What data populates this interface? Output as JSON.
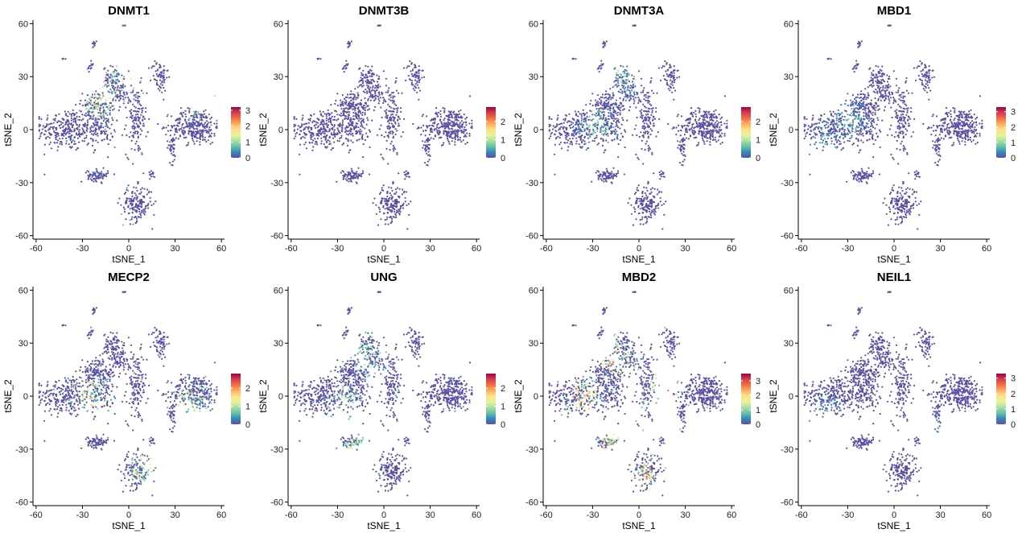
{
  "chart_data": [
    {
      "type": "scatter",
      "title": "DNMT1",
      "xlabel": "tSNE_1",
      "ylabel": "tSNE_2",
      "xlim": [
        -62,
        62
      ],
      "ylim": [
        -62,
        62
      ],
      "xticks": [
        "-60",
        "-30",
        "0",
        "30",
        "60"
      ],
      "yticks": [
        "-60",
        "-30",
        "0",
        "30",
        "60"
      ],
      "legend_ticks": [
        "0",
        "1",
        "2",
        "3"
      ],
      "legend_max": 3.2,
      "color_max": 1.6,
      "hot_spots": [
        [
          -18,
          18
        ],
        [
          50,
          18
        ],
        [
          -8,
          -52
        ],
        [
          0,
          35
        ]
      ],
      "grid": false,
      "legend_position": "right"
    },
    {
      "type": "scatter",
      "title": "DNMT3B",
      "xlabel": "tSNE_1",
      "ylabel": "tSNE_2",
      "xlim": [
        -62,
        62
      ],
      "ylim": [
        -62,
        62
      ],
      "xticks": [
        "-60",
        "-30",
        "0",
        "30",
        "60"
      ],
      "yticks": [
        "-60",
        "-30",
        "0",
        "30",
        "60"
      ],
      "legend_ticks": [
        "0",
        "1",
        "2"
      ],
      "legend_max": 2.8,
      "color_max": 0.1,
      "hot_spots": [],
      "grid": false,
      "legend_position": "right"
    },
    {
      "type": "scatter",
      "title": "DNMT3A",
      "xlabel": "tSNE_1",
      "ylabel": "tSNE_2",
      "xlim": [
        -62,
        62
      ],
      "ylim": [
        -62,
        62
      ],
      "xticks": [
        "-60",
        "-30",
        "0",
        "30",
        "60"
      ],
      "yticks": [
        "-60",
        "-30",
        "0",
        "30",
        "60"
      ],
      "legend_ticks": [
        "0",
        "1",
        "2"
      ],
      "legend_max": 2.8,
      "color_max": 0.8,
      "hot_spots": [
        [
          -28,
          2
        ],
        [
          -10,
          30
        ]
      ],
      "grid": false,
      "legend_position": "right"
    },
    {
      "type": "scatter",
      "title": "MBD1",
      "xlabel": "tSNE_1",
      "ylabel": "tSNE_2",
      "xlim": [
        -62,
        62
      ],
      "ylim": [
        -62,
        62
      ],
      "xticks": [
        "-60",
        "-30",
        "0",
        "30",
        "60"
      ],
      "yticks": [
        "-60",
        "-30",
        "0",
        "30",
        "60"
      ],
      "legend_ticks": [
        "0",
        "1",
        "2",
        "3"
      ],
      "legend_max": 3.3,
      "color_max": 0.7,
      "hot_spots": [
        [
          -45,
          -8
        ],
        [
          -28,
          5
        ]
      ],
      "grid": false,
      "legend_position": "right"
    },
    {
      "type": "scatter",
      "title": "MECP2",
      "xlabel": "tSNE_1",
      "ylabel": "tSNE_2",
      "xlim": [
        -62,
        62
      ],
      "ylim": [
        -62,
        62
      ],
      "xticks": [
        "-60",
        "-30",
        "0",
        "30",
        "60"
      ],
      "yticks": [
        "-60",
        "-30",
        "0",
        "30",
        "60"
      ],
      "legend_ticks": [
        "0",
        "1",
        "2"
      ],
      "legend_max": 2.8,
      "color_max": 1.4,
      "hot_spots": [
        [
          10,
          -42
        ],
        [
          -25,
          0
        ],
        [
          40,
          -5
        ]
      ],
      "grid": false,
      "legend_position": "right"
    },
    {
      "type": "scatter",
      "title": "UNG",
      "xlabel": "tSNE_1",
      "ylabel": "tSNE_2",
      "xlim": [
        -62,
        62
      ],
      "ylim": [
        -62,
        62
      ],
      "xticks": [
        "-60",
        "-30",
        "0",
        "30",
        "60"
      ],
      "yticks": [
        "-60",
        "-30",
        "0",
        "30",
        "60"
      ],
      "legend_ticks": [
        "0",
        "1",
        "2"
      ],
      "legend_max": 2.8,
      "color_max": 1.1,
      "hot_spots": [
        [
          -12,
          22
        ],
        [
          -25,
          -5
        ],
        [
          -18,
          -28
        ]
      ],
      "grid": false,
      "legend_position": "right"
    },
    {
      "type": "scatter",
      "title": "MBD2",
      "xlabel": "tSNE_1",
      "ylabel": "tSNE_2",
      "xlim": [
        -62,
        62
      ],
      "ylim": [
        -62,
        62
      ],
      "xticks": [
        "-60",
        "-30",
        "0",
        "30",
        "60"
      ],
      "yticks": [
        "-60",
        "-30",
        "0",
        "30",
        "60"
      ],
      "legend_ticks": [
        "0",
        "1",
        "2",
        "3"
      ],
      "legend_max": 3.5,
      "color_max": 2.2,
      "hot_spots": [
        [
          -35,
          0
        ],
        [
          -15,
          20
        ],
        [
          5,
          -45
        ],
        [
          -20,
          -25
        ],
        [
          15,
          5
        ]
      ],
      "grid": false,
      "legend_position": "right"
    },
    {
      "type": "scatter",
      "title": "NEIL1",
      "xlabel": "tSNE_1",
      "ylabel": "tSNE_2",
      "xlim": [
        -62,
        62
      ],
      "ylim": [
        -62,
        62
      ],
      "xticks": [
        "-60",
        "-30",
        "0",
        "30",
        "60"
      ],
      "yticks": [
        "-60",
        "-30",
        "0",
        "30",
        "60"
      ],
      "legend_ticks": [
        "0",
        "1",
        "2",
        "3"
      ],
      "legend_max": 3.3,
      "color_max": 0.5,
      "hot_spots": [
        [
          -45,
          -10
        ],
        [
          25,
          -20
        ]
      ],
      "grid": false,
      "legend_position": "right"
    }
  ],
  "clusters": [
    {
      "center": [
        -40,
        0
      ],
      "spread": [
        17,
        11
      ],
      "count": 280
    },
    {
      "center": [
        -18,
        5
      ],
      "spread": [
        9,
        13
      ],
      "count": 200
    },
    {
      "center": [
        -10,
        28
      ],
      "spread": [
        6,
        7
      ],
      "count": 90
    },
    {
      "center": [
        -22,
        14
      ],
      "spread": [
        7,
        7
      ],
      "count": 80
    },
    {
      "center": [
        5,
        5
      ],
      "spread": [
        6,
        18
      ],
      "count": 140
    },
    {
      "center": [
        20,
        30
      ],
      "spread": [
        5,
        9
      ],
      "count": 70
    },
    {
      "center": [
        43,
        2
      ],
      "spread": [
        14,
        9
      ],
      "count": 320
    },
    {
      "center": [
        28,
        -10
      ],
      "spread": [
        3,
        8
      ],
      "count": 40
    },
    {
      "center": [
        -20,
        -26
      ],
      "spread": [
        6,
        3
      ],
      "count": 80
    },
    {
      "center": [
        5,
        -42
      ],
      "spread": [
        9,
        9
      ],
      "count": 180
    },
    {
      "center": [
        -5,
        20
      ],
      "spread": [
        6,
        6
      ],
      "count": 60
    },
    {
      "center": [
        -25,
        35
      ],
      "spread": [
        2,
        3
      ],
      "count": 15
    },
    {
      "center": [
        -22,
        48
      ],
      "spread": [
        2,
        2
      ],
      "count": 10
    },
    {
      "center": [
        -3,
        59
      ],
      "spread": [
        1,
        0.6
      ],
      "count": 8
    },
    {
      "center": [
        -42,
        40
      ],
      "spread": [
        1,
        1
      ],
      "count": 4
    },
    {
      "center": [
        15,
        -25
      ],
      "spread": [
        2,
        2
      ],
      "count": 15
    }
  ],
  "palette": [
    "#5e4fa2",
    "#3288bd",
    "#66c2a5",
    "#abdda4",
    "#e6f598",
    "#fee08b",
    "#fdae61",
    "#f46d43",
    "#d53e4f",
    "#9e0142"
  ],
  "base_point_color": "#5e4fa2"
}
